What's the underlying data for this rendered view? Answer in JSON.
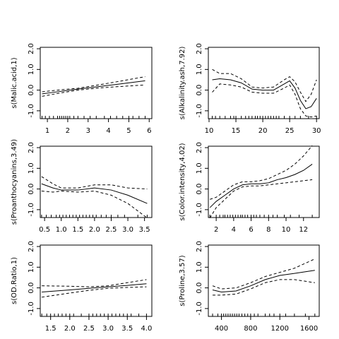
{
  "chart_data": [
    {
      "type": "line",
      "ylabel": "s(Malic.acid,1)",
      "x": [
        0.74,
        1.5,
        2.5,
        3.5,
        4.5,
        5.8
      ],
      "series": [
        {
          "color": "#000000",
          "dash": false,
          "values": [
            -0.18,
            -0.08,
            0.05,
            0.17,
            0.29,
            0.45
          ]
        },
        {
          "color": "#000000",
          "dash": true,
          "values": [
            -0.08,
            0,
            0.09,
            0.25,
            0.42,
            0.65
          ]
        },
        {
          "color": "#000000",
          "dash": true,
          "values": [
            -0.3,
            -0.16,
            0,
            0.1,
            0.17,
            0.25
          ]
        }
      ],
      "rug": [
        0.74,
        0.9,
        1.1,
        1.3,
        1.5,
        1.6,
        1.7,
        1.8,
        1.9,
        2.0,
        2.1,
        2.3,
        2.5,
        2.8,
        3.1,
        3.4,
        3.8,
        4.1,
        4.4,
        4.7,
        5.0,
        5.2,
        5.5,
        5.8
      ],
      "xlim": [
        0.65,
        6.13
      ],
      "ylim": [
        -1.38,
        2.07
      ],
      "xticks": [
        1,
        2,
        3,
        4,
        5,
        6
      ],
      "yticks": [
        {
          "value": -1,
          "label": "-1.0"
        },
        {
          "value": 0,
          "label": "0.0"
        },
        {
          "value": 1,
          "label": "1.0"
        },
        {
          "value": 2,
          "label": "2.0"
        }
      ]
    },
    {
      "type": "line",
      "ylabel": "s(Alkalinity.ash,7.92)",
      "x": [
        10.6,
        12,
        14,
        16,
        18,
        20,
        22,
        24,
        25,
        26,
        27,
        28,
        29,
        30
      ],
      "series": [
        {
          "color": "#000000",
          "dash": false,
          "values": [
            0.5,
            0.55,
            0.5,
            0.35,
            0.05,
            0,
            0,
            0.3,
            0.45,
            0.1,
            -0.5,
            -0.9,
            -0.8,
            -0.4
          ]
        },
        {
          "color": "#000000",
          "dash": true,
          "values": [
            1.0,
            0.8,
            0.8,
            0.55,
            0.15,
            0.1,
            0.15,
            0.5,
            0.65,
            0.4,
            -0.1,
            -0.55,
            -0.2,
            0.5
          ]
        },
        {
          "color": "#000000",
          "dash": true,
          "values": [
            -0.1,
            0.3,
            0.25,
            0.15,
            -0.1,
            -0.15,
            -0.15,
            0.1,
            0.25,
            -0.2,
            -0.9,
            -1.25,
            -1.3,
            -1.25
          ]
        }
      ],
      "rug": [
        10.6,
        11.2,
        12,
        13,
        14,
        14.6,
        15,
        16,
        16.8,
        17.4,
        18,
        18.6,
        19,
        19.5,
        20,
        20.5,
        21,
        21.5,
        22,
        22.5,
        23,
        24,
        25,
        26,
        27,
        28.5,
        30
      ],
      "xlim": [
        9.87,
        30.5
      ],
      "ylim": [
        -1.38,
        2.07
      ],
      "xticks": [
        10,
        15,
        20,
        25,
        30
      ],
      "yticks": [
        {
          "value": -1,
          "label": "-1.0"
        },
        {
          "value": 0,
          "label": "0.0"
        },
        {
          "value": 1,
          "label": "1.0"
        },
        {
          "value": 2,
          "label": "2.0"
        }
      ]
    },
    {
      "type": "line",
      "ylabel": "s(Proanthocyanins,3.49)",
      "x": [
        0.41,
        0.75,
        1.0,
        1.5,
        2.0,
        2.5,
        3.0,
        3.58
      ],
      "series": [
        {
          "color": "#000000",
          "dash": false,
          "values": [
            0.25,
            0.05,
            -0.05,
            -0.05,
            0.05,
            -0.05,
            -0.3,
            -0.7
          ]
        },
        {
          "color": "#000000",
          "dash": true,
          "values": [
            0.6,
            0.25,
            0.05,
            0.05,
            0.2,
            0.2,
            0.05,
            0.0
          ]
        },
        {
          "color": "#000000",
          "dash": true,
          "values": [
            -0.1,
            -0.15,
            -0.1,
            -0.15,
            -0.1,
            -0.3,
            -0.7,
            -1.4
          ]
        }
      ],
      "rug": [
        0.41,
        0.55,
        0.7,
        0.85,
        0.95,
        1.05,
        1.15,
        1.25,
        1.35,
        1.45,
        1.55,
        1.65,
        1.75,
        1.85,
        1.95,
        2.05,
        2.2,
        2.35,
        2.5,
        2.7,
        2.9,
        3.3,
        3.58
      ],
      "xlim": [
        0.37,
        3.72
      ],
      "ylim": [
        -1.38,
        2.07
      ],
      "xticks": [
        0.5,
        {
          "value": 1,
          "label": "1.0"
        },
        1.5,
        {
          "value": 2,
          "label": "2.0"
        },
        2.5,
        {
          "value": 3,
          "label": "3.0"
        },
        3.5
      ],
      "yticks": [
        {
          "value": -1,
          "label": "-1.0"
        },
        {
          "value": 0,
          "label": "0.0"
        },
        {
          "value": 1,
          "label": "1.0"
        },
        {
          "value": 2,
          "label": "2.0"
        }
      ]
    },
    {
      "type": "line",
      "ylabel": "s(Color.intensity,4.02)",
      "x": [
        1.28,
        2,
        3,
        4,
        5,
        6,
        7,
        8,
        9,
        10,
        11,
        12,
        13
      ],
      "series": [
        {
          "color": "#000000",
          "dash": false,
          "values": [
            -0.9,
            -0.6,
            -0.3,
            0,
            0.2,
            0.25,
            0.25,
            0.3,
            0.45,
            0.55,
            0.7,
            0.9,
            1.2
          ]
        },
        {
          "color": "#000000",
          "dash": true,
          "values": [
            -0.5,
            -0.4,
            -0.1,
            0.2,
            0.35,
            0.35,
            0.4,
            0.5,
            0.7,
            0.9,
            1.2,
            1.6,
            2.1
          ]
        },
        {
          "color": "#000000",
          "dash": true,
          "values": [
            -1.4,
            -0.9,
            -0.5,
            -0.1,
            0.1,
            0.15,
            0.15,
            0.2,
            0.25,
            0.3,
            0.35,
            0.4,
            0.45
          ]
        }
      ],
      "rug": [
        1.28,
        2,
        2.4,
        2.8,
        3,
        3.3,
        3.6,
        3.9,
        4.2,
        4.5,
        4.8,
        5,
        5.3,
        5.6,
        6,
        6.3,
        6.6,
        7,
        7.5,
        8,
        8.5,
        9,
        9.8,
        10.5,
        11.5,
        13
      ],
      "xlim": [
        1.1,
        13.8
      ],
      "ylim": [
        -1.38,
        2.07
      ],
      "xticks": [
        2,
        4,
        6,
        8,
        10,
        12
      ],
      "yticks": [
        {
          "value": -1,
          "label": "-1.0"
        },
        {
          "value": 0,
          "label": "0.0"
        },
        {
          "value": 1,
          "label": "1.0"
        },
        {
          "value": 2,
          "label": "2.0"
        }
      ]
    },
    {
      "type": "line",
      "ylabel": "s(OD.Ratio,1)",
      "x": [
        1.27,
        2,
        2.5,
        3,
        3.5,
        4
      ],
      "series": [
        {
          "color": "#000000",
          "dash": false,
          "values": [
            -0.2,
            -0.1,
            -0.02,
            0.05,
            0.12,
            0.2
          ]
        },
        {
          "color": "#000000",
          "dash": true,
          "values": [
            0.1,
            0.08,
            0.05,
            0.1,
            0.25,
            0.4
          ]
        },
        {
          "color": "#000000",
          "dash": true,
          "values": [
            -0.45,
            -0.25,
            -0.12,
            -0.02,
            0.02,
            0.05
          ]
        }
      ],
      "rug": [
        1.27,
        1.4,
        1.5,
        1.6,
        1.7,
        1.8,
        1.9,
        2.0,
        2.1,
        2.3,
        2.5,
        2.6,
        2.7,
        2.8,
        2.9,
        3.0,
        3.1,
        3.2,
        3.3,
        3.4,
        3.5,
        3.6,
        3.8,
        4.0
      ],
      "xlim": [
        1.23,
        4.14
      ],
      "ylim": [
        -1.38,
        2.07
      ],
      "xticks": [
        1.5,
        {
          "value": 2,
          "label": "2.0"
        },
        2.5,
        {
          "value": 3,
          "label": "3.0"
        },
        3.5,
        {
          "value": 4,
          "label": "4.0"
        }
      ],
      "yticks": [
        {
          "value": -1,
          "label": "-1.0"
        },
        {
          "value": 0,
          "label": "0.0"
        },
        {
          "value": 1,
          "label": "1.0"
        },
        {
          "value": 2,
          "label": "2.0"
        }
      ]
    },
    {
      "type": "line",
      "ylabel": "s(Proline,3.57)",
      "x": [
        278,
        400,
        600,
        800,
        1000,
        1200,
        1400,
        1680
      ],
      "series": [
        {
          "color": "#000000",
          "dash": false,
          "values": [
            -0.1,
            -0.2,
            -0.15,
            0.1,
            0.4,
            0.6,
            0.7,
            0.85
          ]
        },
        {
          "color": "#000000",
          "dash": true,
          "values": [
            0.1,
            -0.05,
            0.0,
            0.25,
            0.55,
            0.75,
            0.95,
            1.4
          ]
        },
        {
          "color": "#000000",
          "dash": true,
          "values": [
            -0.35,
            -0.35,
            -0.3,
            -0.05,
            0.25,
            0.4,
            0.4,
            0.25
          ]
        }
      ],
      "rug": [
        278,
        350,
        400,
        430,
        460,
        490,
        520,
        550,
        580,
        610,
        640,
        680,
        720,
        760,
        800,
        850,
        900,
        1000,
        1060,
        1120,
        1200,
        1280,
        1400,
        1550,
        1680
      ],
      "xlim": [
        220,
        1740
      ],
      "ylim": [
        -1.38,
        2.07
      ],
      "xticks": [
        400,
        800,
        1200,
        1600
      ],
      "yticks": [
        {
          "value": -1,
          "label": "-1.0"
        },
        {
          "value": 0,
          "label": "0.0"
        },
        {
          "value": 1,
          "label": "1.0"
        },
        {
          "value": 2,
          "label": "2.0"
        }
      ]
    }
  ]
}
